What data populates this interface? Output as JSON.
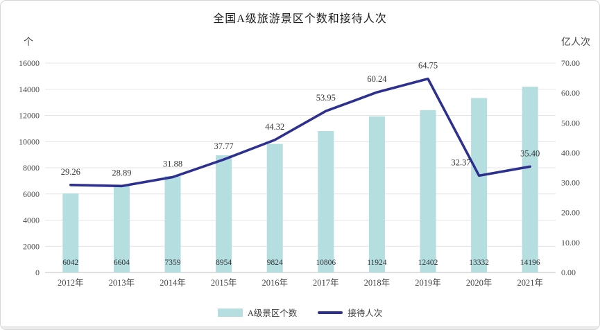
{
  "title": "全国A级旅游景区个数和接待人次",
  "chart_data": {
    "type": "bar+line",
    "title": "全国A级旅游景区个数和接待人次",
    "categories": [
      "2012年",
      "2013年",
      "2014年",
      "2015年",
      "2016年",
      "2017年",
      "2018年",
      "2019年",
      "2020年",
      "2021年"
    ],
    "series": [
      {
        "name": "A级景区个数",
        "type": "bar",
        "axis": "left",
        "color": "#b5dee1",
        "values": [
          6042,
          6604,
          7359,
          8954,
          9824,
          10806,
          11924,
          12402,
          13332,
          14196
        ],
        "labels": [
          "6042",
          "6604",
          "7359",
          "8954",
          "9824",
          "10806",
          "11924",
          "12402",
          "13332",
          "14196"
        ]
      },
      {
        "name": "接待人次",
        "type": "line",
        "axis": "right",
        "color": "#2d308f",
        "values": [
          29.26,
          28.89,
          31.88,
          37.77,
          44.32,
          53.95,
          60.24,
          64.75,
          32.37,
          35.4
        ],
        "labels": [
          "29.26",
          "28.89",
          "31.88",
          "37.77",
          "44.32",
          "53.95",
          "60.24",
          "64.75",
          "32.37",
          "35.40"
        ],
        "label_offsets": {
          "8": [
            -26,
            0
          ]
        }
      }
    ],
    "left_axis": {
      "unit": "个",
      "min": 0,
      "max": 16000,
      "tick_labels": [
        "0",
        "2000",
        "4000",
        "6000",
        "8000",
        "10000",
        "12000",
        "14000",
        "16000"
      ]
    },
    "right_axis": {
      "unit": "亿人次",
      "min": 0,
      "max": 70,
      "tick_labels": [
        "0.00",
        "10.00",
        "20.00",
        "30.00",
        "40.00",
        "50.00",
        "60.00",
        "70.00"
      ]
    },
    "grid": true,
    "legend_position": "bottom"
  },
  "legend": {
    "items": [
      {
        "label": "A级景区个数"
      },
      {
        "label": "接待人次"
      }
    ]
  },
  "colors": {
    "bar": "#b5dee1",
    "line": "#2d308f",
    "grid": "#e4e4e4",
    "axis_line": "#bfbfbf",
    "tick_text": "#4a4a4a",
    "title_text": "#1a1a1a",
    "card_border": "#d6d6d6",
    "bottom_strip": "#ececec"
  }
}
